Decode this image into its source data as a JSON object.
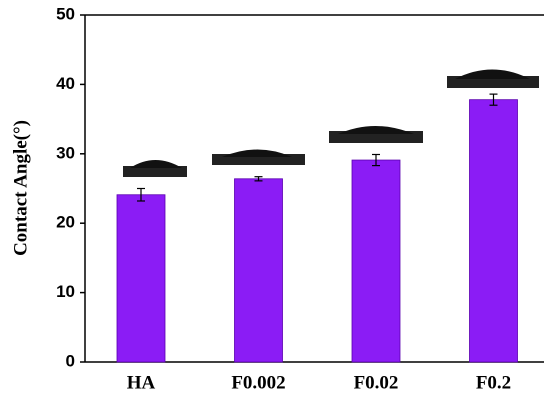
{
  "chart_data": {
    "type": "bar",
    "y_label": "Contact Angle(°)",
    "categories": [
      "HA",
      "F0.002",
      "F0.02",
      "F0.2"
    ],
    "values": [
      24.1,
      26.4,
      29.1,
      37.8
    ],
    "errors": [
      0.9,
      0.3,
      0.8,
      0.8
    ],
    "color": "#8b1cf5",
    "ylim": [
      0,
      50
    ],
    "yticks": [
      0,
      10,
      20,
      30,
      40,
      50
    ]
  }
}
